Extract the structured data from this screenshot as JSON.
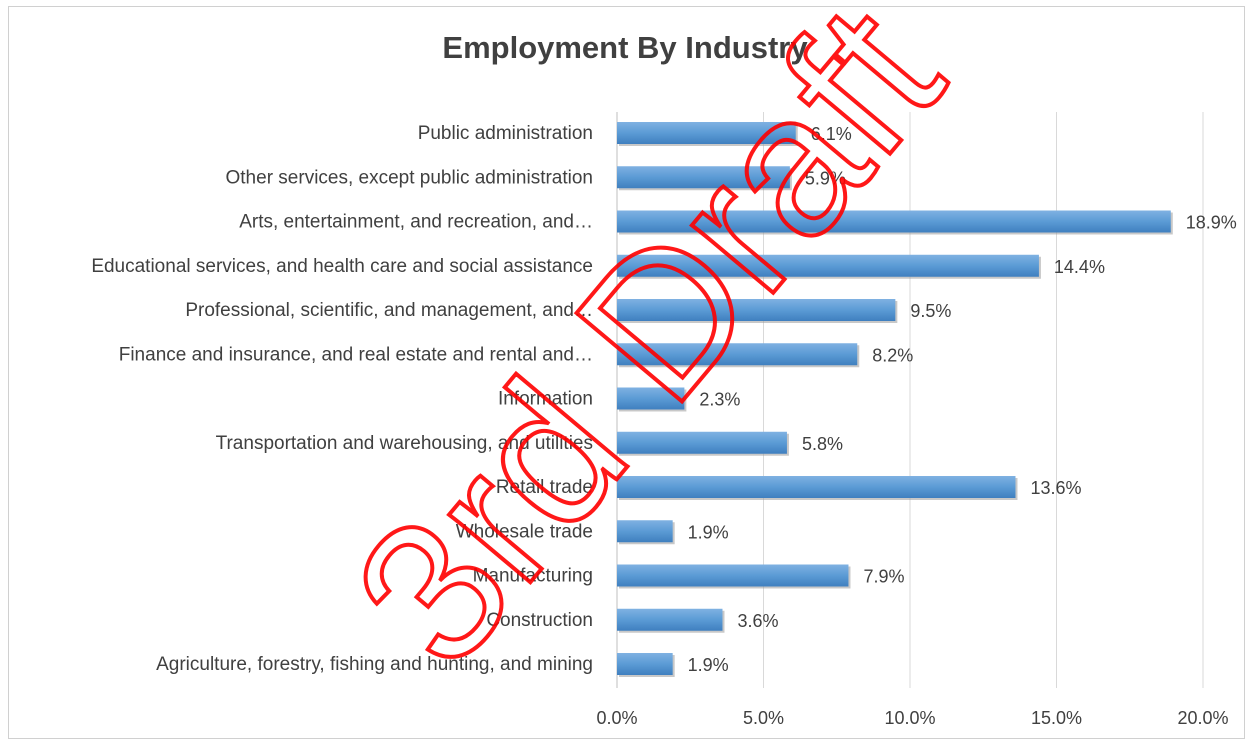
{
  "chart_data": {
    "type": "bar",
    "orientation": "horizontal",
    "title": "Employment By Industry",
    "xlabel": "",
    "ylabel": "",
    "categories": [
      "Public administration",
      "Other services, except public administration",
      "Arts, entertainment, and recreation, and…",
      "Educational services, and health care and social assistance",
      "Professional, scientific, and management, and…",
      "Finance and insurance, and real estate and rental and…",
      "Information",
      "Transportation and warehousing, and utilities",
      "Retail trade",
      "Wholesale trade",
      "Manufacturing",
      "Construction",
      "Agriculture, forestry, fishing and hunting, and mining"
    ],
    "values": [
      6.1,
      5.9,
      18.9,
      14.4,
      9.5,
      8.2,
      2.3,
      5.8,
      13.6,
      1.9,
      7.9,
      3.6,
      1.9
    ],
    "value_labels": [
      "6.1%",
      "5.9%",
      "18.9%",
      "14.4%",
      "9.5%",
      "8.2%",
      "2.3%",
      "5.8%",
      "13.6%",
      "1.9%",
      "7.9%",
      "3.6%",
      "1.9%"
    ],
    "xlim": [
      0,
      20
    ],
    "x_ticks": [
      "0.0%",
      "5.0%",
      "10.0%",
      "15.0%",
      "20.0%"
    ],
    "grid": true,
    "bar_color": "#5b9bd5",
    "gridline_color": "#d9d9d9"
  },
  "watermark": {
    "text": "3rd Draft",
    "color": "#ff0000"
  }
}
